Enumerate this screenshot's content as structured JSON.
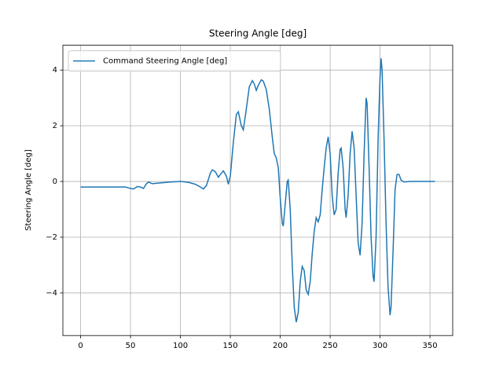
{
  "chart_data": {
    "type": "line",
    "title": "Steering Angle [deg]",
    "ylabel": "Steering Angle [deg]",
    "x": [
      0,
      10,
      20,
      30,
      40,
      45,
      50,
      53,
      57,
      60,
      63,
      66,
      68,
      72,
      80,
      90,
      100,
      108,
      115,
      120,
      123,
      126,
      130,
      132,
      135,
      138,
      140,
      143,
      146,
      148,
      150,
      153,
      156,
      158,
      161,
      163,
      166,
      169,
      172,
      174,
      176,
      178,
      181,
      183,
      186,
      189,
      192,
      194,
      196,
      198,
      200,
      202,
      203,
      205,
      207,
      208,
      210,
      212,
      214,
      216,
      218,
      220,
      222,
      224,
      226,
      228,
      230,
      232,
      234,
      236,
      238,
      240,
      242,
      244,
      246,
      248,
      250,
      252,
      254,
      256,
      258,
      260,
      261,
      263,
      265,
      266,
      268,
      270,
      272,
      274,
      276,
      278,
      280,
      282,
      284,
      286,
      287,
      289,
      291,
      293,
      294,
      296,
      298,
      300,
      301,
      302,
      304,
      306,
      308,
      310,
      311,
      313,
      315,
      317,
      319,
      321,
      324,
      330,
      340,
      350,
      355
    ],
    "series": [
      {
        "name": "Command Steering Angle [deg]",
        "color": "#1f77b4",
        "values": [
          -0.2,
          -0.2,
          -0.2,
          -0.2,
          -0.2,
          -0.2,
          -0.25,
          -0.27,
          -0.18,
          -0.2,
          -0.25,
          -0.08,
          -0.02,
          -0.08,
          -0.05,
          -0.02,
          0,
          -0.03,
          -0.1,
          -0.2,
          -0.27,
          -0.15,
          0.3,
          0.42,
          0.35,
          0.15,
          0.25,
          0.38,
          0.2,
          -0.1,
          0.2,
          1.4,
          2.4,
          2.5,
          2.0,
          1.85,
          2.6,
          3.4,
          3.62,
          3.5,
          3.27,
          3.45,
          3.65,
          3.6,
          3.3,
          2.6,
          1.6,
          1.0,
          0.85,
          0.5,
          -0.6,
          -1.5,
          -1.6,
          -0.8,
          0,
          0.05,
          -1.0,
          -3,
          -4.5,
          -5.05,
          -4.7,
          -3.6,
          -3.05,
          -3.2,
          -3.9,
          -4.05,
          -3.6,
          -2.6,
          -1.8,
          -1.3,
          -1.45,
          -1.2,
          -0.3,
          0.5,
          1.2,
          1.6,
          1.0,
          -0.5,
          -1.2,
          -1.0,
          0.3,
          1.15,
          1.2,
          0.5,
          -1.0,
          -1.3,
          -0.5,
          1.0,
          1.8,
          1.2,
          -0.5,
          -2.2,
          -2.65,
          -1.5,
          1.0,
          3.0,
          2.8,
          0.5,
          -2.0,
          -3.4,
          -3.6,
          -2,
          1.5,
          3.8,
          4.42,
          4.0,
          1.5,
          -1.5,
          -3.8,
          -4.8,
          -4.5,
          -2.5,
          -0.3,
          0.25,
          0.25,
          0.05,
          -0.02,
          0,
          0,
          0,
          0
        ]
      }
    ],
    "xlim": [
      -17.75,
      372.75
    ],
    "ylim": [
      -5.53,
      4.89
    ],
    "xticks": [
      0,
      50,
      100,
      150,
      200,
      250,
      300,
      350
    ],
    "yticks": [
      {
        "value": -4,
        "label": "−4"
      },
      {
        "value": -2,
        "label": "−2"
      },
      0,
      2,
      4
    ],
    "grid": true,
    "legend": "upper left"
  }
}
